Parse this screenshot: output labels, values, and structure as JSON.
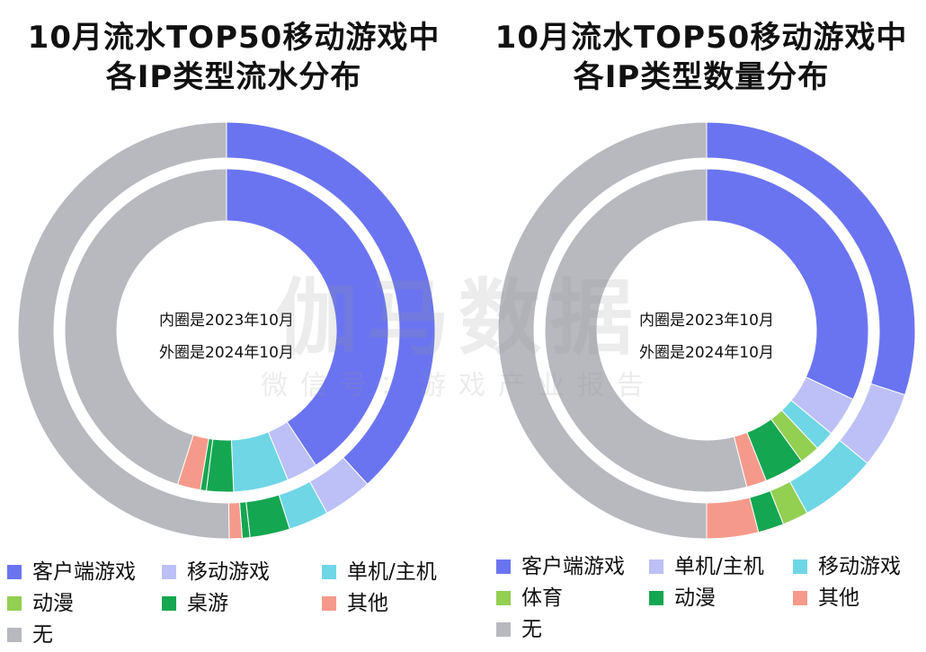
{
  "colors": {
    "客户端游戏": "#6b74f0",
    "移动游戏": "#6fd6e6",
    "单机/主机": "#bdc0f6",
    "动漫": "#15a651",
    "桌游": "#15a651",
    "体育": "#93cf51",
    "其他": "#f59a8a",
    "无": "#b7b9bf"
  },
  "watermark": {
    "main": "伽马数据",
    "sub": "微信号：游戏产业报告"
  },
  "chart_data": [
    {
      "type": "pie",
      "variant": "nested-donut",
      "title": [
        "10月流水TOP50移动游戏中",
        "各IP类型流水分布"
      ],
      "center_text": [
        "内圈是2023年10月",
        "外圈是2024年10月"
      ],
      "legend": [
        "客户端游戏",
        "移动游戏",
        "单机/主机",
        "动漫",
        "桌游",
        "其他",
        "无"
      ],
      "legend_colors": [
        "#6b74f0",
        "#bdc0f6",
        "#6fd6e6",
        "#93cf51",
        "#15a651",
        "#f59a8a",
        "#b7b9bf"
      ],
      "inner": [
        {
          "label": "客户端游戏",
          "value": 40.7
        },
        {
          "label": "单机/主机",
          "value": 3.1
        },
        {
          "label": "移动游戏",
          "value": 5.5
        },
        {
          "label": "动漫",
          "value": 2.7
        },
        {
          "label": "桌游",
          "value": 0.6
        },
        {
          "label": "其他",
          "value": 2.3
        },
        {
          "label": "无",
          "value": 45.1
        }
      ],
      "outer": [
        {
          "label": "客户端游戏",
          "value": 38.2
        },
        {
          "label": "单机/主机",
          "value": 3.8
        },
        {
          "label": "移动游戏",
          "value": 3.1
        },
        {
          "label": "动漫",
          "value": 3.1
        },
        {
          "label": "桌游",
          "value": 0.6
        },
        {
          "label": "其他",
          "value": 1.0
        },
        {
          "label": "无",
          "value": 50.2
        }
      ]
    },
    {
      "type": "pie",
      "variant": "nested-donut",
      "title": [
        "10月流水TOP50移动游戏中",
        "各IP类型数量分布"
      ],
      "center_text": [
        "内圈是2023年10月",
        "外圈是2024年10月"
      ],
      "legend": [
        "客户端游戏",
        "单机/主机",
        "移动游戏",
        "体育",
        "动漫",
        "其他",
        "无"
      ],
      "legend_colors": [
        "#6b74f0",
        "#bdc0f6",
        "#6fd6e6",
        "#93cf51",
        "#15a651",
        "#f59a8a",
        "#b7b9bf"
      ],
      "inner": [
        {
          "label": "客户端游戏",
          "value": 32
        },
        {
          "label": "单机/主机",
          "value": 4
        },
        {
          "label": "移动游戏",
          "value": 2
        },
        {
          "label": "体育",
          "value": 2
        },
        {
          "label": "动漫",
          "value": 4
        },
        {
          "label": "其他",
          "value": 2
        },
        {
          "label": "无",
          "value": 54
        }
      ],
      "outer": [
        {
          "label": "客户端游戏",
          "value": 30
        },
        {
          "label": "单机/主机",
          "value": 6
        },
        {
          "label": "移动游戏",
          "value": 6
        },
        {
          "label": "体育",
          "value": 2
        },
        {
          "label": "动漫",
          "value": 2
        },
        {
          "label": "其他",
          "value": 4
        },
        {
          "label": "无",
          "value": 50
        }
      ]
    }
  ]
}
